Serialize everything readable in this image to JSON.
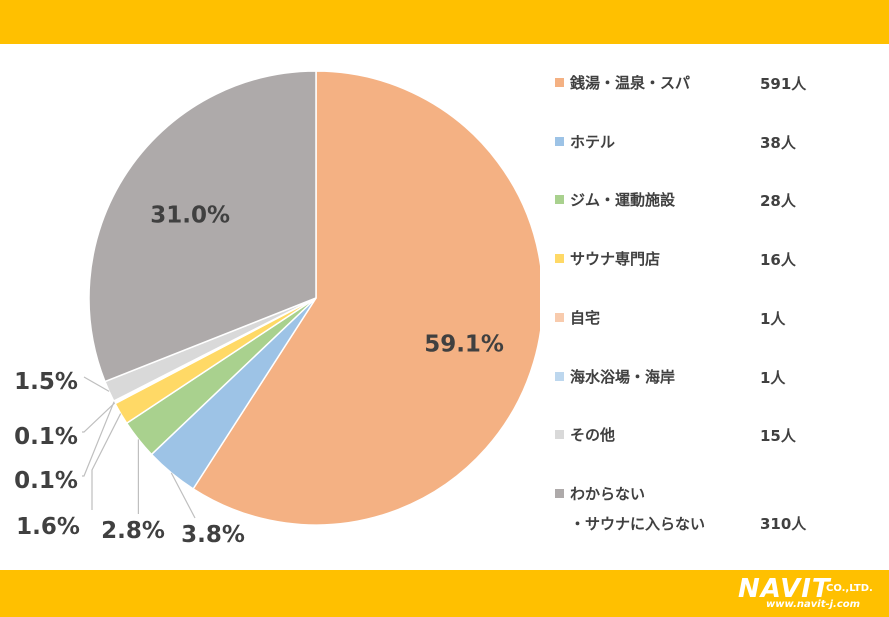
{
  "chart_data": {
    "type": "pie",
    "categories": [
      "銭湯・温泉・スパ",
      "ホテル",
      "ジム・運動施設",
      "サウナ専門店",
      "自宅",
      "海水浴場・海岸",
      "その他",
      "わからない・サウナに入らない"
    ],
    "values": [
      59.1,
      3.8,
      2.8,
      1.6,
      0.1,
      0.1,
      1.5,
      31.0
    ],
    "value_labels": [
      "59.1%",
      "3.8%",
      "2.8%",
      "1.6%",
      "0.1%",
      "0.1%",
      "1.5%",
      "31.0%"
    ],
    "counts": [
      "591人",
      "38人",
      "28人",
      "16人",
      "1人",
      "1人",
      "15人",
      "310人"
    ],
    "colors": [
      "#f4b183",
      "#9dc3e6",
      "#a9d18e",
      "#ffd966",
      "#f8cbad",
      "#bdd7ee",
      "#d9d9d9",
      "#aeaaaa"
    ],
    "legend_placement": "right"
  },
  "legend": [
    {
      "label": "銭湯・温泉・スパ",
      "count": "591人",
      "color": "#f4b183"
    },
    {
      "label": "ホテル",
      "count": "38人",
      "color": "#9dc3e6"
    },
    {
      "label": "ジム・運動施設",
      "count": "28人",
      "color": "#a9d18e"
    },
    {
      "label": "サウナ専門店",
      "count": "16人",
      "color": "#ffd966"
    },
    {
      "label": "自宅",
      "count": "1人",
      "color": "#f8cbad"
    },
    {
      "label": "海水浴場・海岸",
      "count": "1人",
      "color": "#bdd7ee"
    },
    {
      "label": "その他",
      "count": "15人",
      "color": "#d9d9d9"
    },
    {
      "label": "わからない",
      "label2": "・サウナに入らない",
      "count": "310人",
      "color": "#aeaaaa"
    }
  ],
  "logo": {
    "name": "NAVIT",
    "co": "CO.,LTD.",
    "url": "www.navit-j.com"
  },
  "colors": {
    "band": "#ffc000"
  }
}
